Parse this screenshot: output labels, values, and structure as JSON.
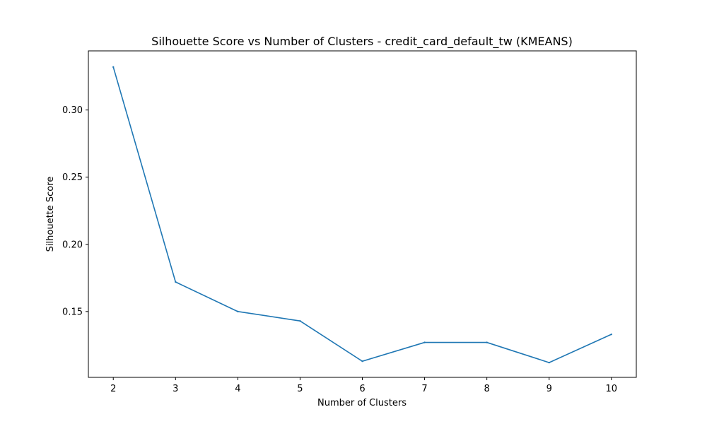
{
  "chart_data": {
    "type": "line",
    "title": "Silhouette Score vs Number of Clusters - credit_card_default_tw (KMEANS)",
    "xlabel": "Number of Clusters",
    "ylabel": "Silhouette Score",
    "x": [
      2,
      3,
      4,
      5,
      6,
      7,
      8,
      9,
      10
    ],
    "series": [
      {
        "values": [
          0.332,
          0.172,
          0.15,
          0.143,
          0.113,
          0.127,
          0.127,
          0.112,
          0.133
        ],
        "color": "#1f77b4"
      }
    ],
    "xlim": [
      1.6,
      10.4
    ],
    "ylim": [
      0.101,
      0.344
    ],
    "xticks": [
      "2",
      "3",
      "4",
      "5",
      "6",
      "7",
      "8",
      "9",
      "10"
    ],
    "yticks": [
      {
        "value": 0.15,
        "label": "0.15"
      },
      {
        "value": 0.2,
        "label": "0.20"
      },
      {
        "value": 0.25,
        "label": "0.25"
      },
      {
        "value": 0.3,
        "label": "0.30"
      }
    ],
    "grid": false,
    "legend": "none"
  }
}
